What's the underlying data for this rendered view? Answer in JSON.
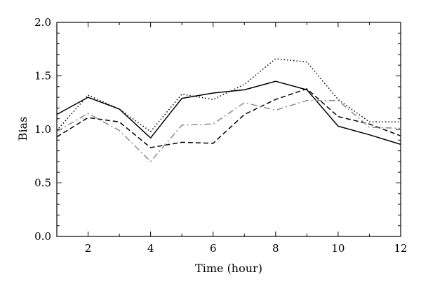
{
  "chart_data": {
    "type": "line",
    "title": "",
    "xlabel": "Time (hour)",
    "ylabel": "Bias",
    "xlim": [
      1,
      12
    ],
    "ylim": [
      0.0,
      2.0
    ],
    "xticks": [
      2,
      4,
      6,
      8,
      10,
      12
    ],
    "xtick_labels": [
      "2",
      "4",
      "6",
      "8",
      "10",
      "12"
    ],
    "yticks": [
      0.0,
      0.5,
      1.0,
      1.5,
      2.0
    ],
    "ytick_labels": [
      "0.0",
      "0.5",
      "1.0",
      "1.5",
      "2.0"
    ],
    "grid": false,
    "legend": "none",
    "x": [
      1,
      2,
      3,
      4,
      5,
      6,
      7,
      8,
      9,
      10,
      11,
      12
    ],
    "series": [
      {
        "style": "solid",
        "color": "#000000",
        "values": [
          1.14,
          1.3,
          1.19,
          0.92,
          1.29,
          1.34,
          1.37,
          1.45,
          1.37,
          1.03,
          0.95,
          0.86
        ]
      },
      {
        "style": "dotted",
        "color": "#000000",
        "values": [
          0.99,
          1.32,
          1.19,
          0.98,
          1.33,
          1.28,
          1.42,
          1.66,
          1.63,
          1.28,
          1.07,
          1.07
        ]
      },
      {
        "style": "dashed",
        "color": "#000000",
        "values": [
          0.93,
          1.11,
          1.07,
          0.83,
          0.88,
          0.87,
          1.14,
          1.28,
          1.38,
          1.12,
          1.05,
          0.94
        ]
      },
      {
        "style": "dashdot",
        "color": "#8c8c8c",
        "values": [
          0.98,
          1.15,
          0.99,
          0.7,
          1.04,
          1.05,
          1.25,
          1.18,
          1.27,
          1.27,
          1.02,
          1.01
        ]
      }
    ]
  }
}
